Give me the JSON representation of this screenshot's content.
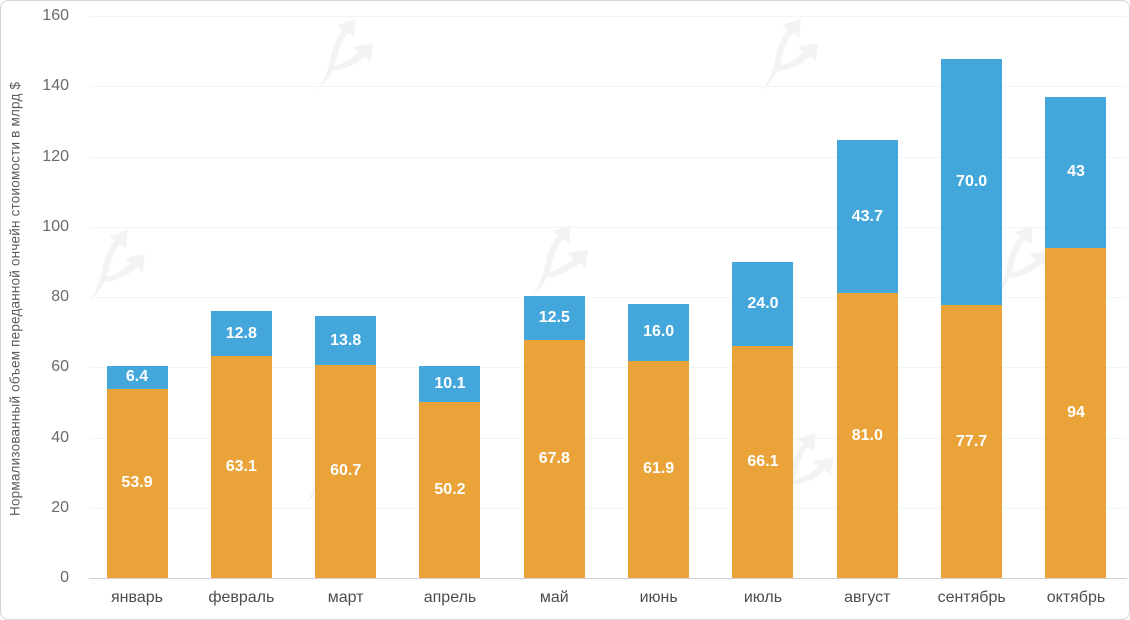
{
  "chart_data": {
    "type": "bar",
    "stacked": true,
    "title": "",
    "xlabel": "",
    "ylabel": "Нормализованный объем переданной ончейн стоиомости в млрд $",
    "ylim": [
      0,
      160
    ],
    "yticks": [
      0,
      20,
      40,
      60,
      80,
      100,
      120,
      140,
      160
    ],
    "grid": true,
    "legend": "none",
    "categories": [
      "январь",
      "февраль",
      "март",
      "апрель",
      "май",
      "июнь",
      "июль",
      "август",
      "сентябрь",
      "октябрь"
    ],
    "series": [
      {
        "name": "bottom-segment",
        "color": "#EAA338",
        "values": [
          53.9,
          63.1,
          60.7,
          50.2,
          67.8,
          61.9,
          66.1,
          81.0,
          77.7,
          94
        ],
        "labels": [
          "53.9",
          "63.1",
          "60.7",
          "50.2",
          "67.8",
          "61.9",
          "66.1",
          "81.0",
          "77.7",
          "94"
        ]
      },
      {
        "name": "top-segment",
        "color": "#44A7DC",
        "values": [
          6.4,
          12.8,
          13.8,
          10.1,
          12.5,
          16.0,
          24.0,
          43.7,
          70.0,
          43
        ],
        "labels": [
          "6.4",
          "12.8",
          "13.8",
          "10.1",
          "12.5",
          "16.0",
          "24.0",
          "43.7",
          "70.0",
          "43"
        ]
      }
    ],
    "label_text_color": "#ffffff"
  },
  "watermark": {
    "icon": "forklog-logo-icon"
  }
}
